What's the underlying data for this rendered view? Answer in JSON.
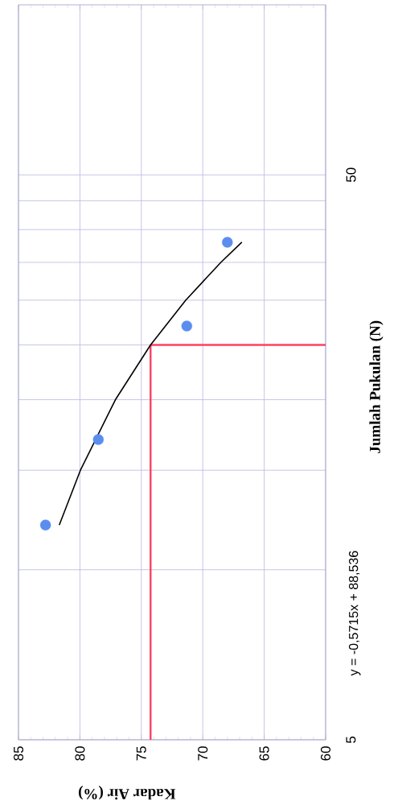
{
  "chart_data": {
    "type": "scatter",
    "xlabel": "Kadar Air (%)",
    "ylabel": "Jumlah Pukulan (N)",
    "annotations": [
      "y = -0,5715x + 88,536"
    ],
    "log": "y",
    "xlim": [
      85,
      60
    ],
    "xticks": [
      60,
      65,
      70,
      75,
      80,
      85
    ],
    "ylim": [
      5,
      100
    ],
    "yticks": [
      5,
      {
        "value": 10,
        "label": null
      },
      {
        "value": 15,
        "label": null
      },
      {
        "value": 20,
        "label": null
      },
      {
        "value": 25,
        "label": null
      },
      {
        "value": 30,
        "label": null
      },
      {
        "value": 35,
        "label": null
      },
      {
        "value": 40,
        "label": null
      },
      {
        "value": 45,
        "label": null
      },
      50
    ],
    "grid": true,
    "marker": "circle",
    "series": [
      {
        "type": "scatter",
        "color": "#5b8def",
        "x": [
          82.8,
          78.5,
          71.3,
          68.0
        ],
        "values": [
          12,
          17,
          27,
          38
        ]
      },
      {
        "type": "line",
        "color": "#000000",
        "marker": "none",
        "x": [
          81.68,
          79.96,
          77.11,
          74.25,
          71.39,
          68.53,
          66.82
        ],
        "values": [
          12,
          15,
          20,
          25,
          30,
          35,
          38
        ]
      }
    ],
    "ref_lines": [
      {
        "axis": "x",
        "value": 74.25,
        "color": "#ff4060"
      },
      {
        "axis": "y",
        "value": 25,
        "color": "#ff4060"
      }
    ]
  }
}
